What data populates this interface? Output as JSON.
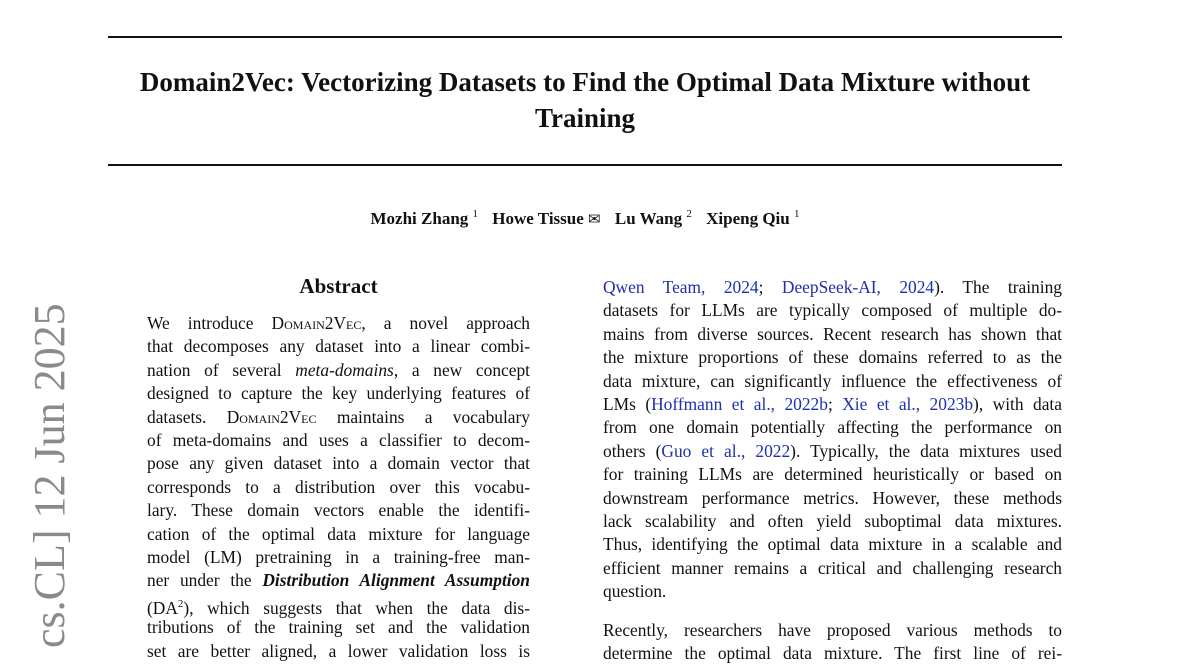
{
  "title": "Domain2Vec: Vectorizing Datasets to Find the Optimal Data Mixture without Training",
  "title_lines": [
    "Domain2Vec: Vectorizing Datasets to Find the Optimal Data Mixture without",
    "Training"
  ],
  "authors": [
    {
      "name": "Mozhi Zhang",
      "mark": "1"
    },
    {
      "name": "Howe Tissue",
      "mark": "✉"
    },
    {
      "name": "Lu Wang",
      "mark": "2"
    },
    {
      "name": "Xipeng Qiu",
      "mark": "1"
    }
  ],
  "abstract_heading": "Abstract",
  "sidebar_stamp": "cs.CL]  12 Jun 2025",
  "link_color": "#1f2fb0",
  "left_column": [
    [
      {
        "t": "We introduce "
      },
      {
        "t": "Domain2Vec",
        "s": "sc"
      },
      {
        "t": ", a novel approach"
      }
    ],
    [
      {
        "t": "that decomposes any dataset into a linear combi-"
      }
    ],
    [
      {
        "t": "nation of several "
      },
      {
        "t": "meta-domains",
        "s": "it"
      },
      {
        "t": ", a new concept"
      }
    ],
    [
      {
        "t": "designed to capture the key underlying features of"
      }
    ],
    [
      {
        "t": "datasets. "
      },
      {
        "t": "Domain2Vec",
        "s": "sc"
      },
      {
        "t": " maintains a vocabulary"
      }
    ],
    [
      {
        "t": "of meta-domains and uses a classifier to decom-"
      }
    ],
    [
      {
        "t": "pose any given dataset into a domain vector that"
      }
    ],
    [
      {
        "t": "corresponds to a distribution over this vocabu-"
      }
    ],
    [
      {
        "t": "lary.  These domain vectors enable the identifi-"
      }
    ],
    [
      {
        "t": "cation of the optimal data mixture for language"
      }
    ],
    [
      {
        "t": "model (LM) pretraining in a training-free man-"
      }
    ],
    [
      {
        "t": "ner under the "
      },
      {
        "t": "Distribution Alignment Assumption",
        "s": "bi"
      }
    ],
    [
      {
        "t": "(DA"
      },
      {
        "t": "2",
        "s": "sup"
      },
      {
        "t": "), which suggests that when the data dis-"
      }
    ],
    [
      {
        "t": "tributions of the training set and the validation"
      }
    ],
    [
      {
        "t": "set are better aligned, a lower validation loss is"
      }
    ]
  ],
  "right_column": [
    [
      {
        "t": "Qwen Team, 2024",
        "s": "lk"
      },
      {
        "t": "; "
      },
      {
        "t": "DeepSeek-AI, 2024",
        "s": "lk"
      },
      {
        "t": ").  The training"
      }
    ],
    [
      {
        "t": "datasets for LLMs are typically composed of multiple do-"
      }
    ],
    [
      {
        "t": "mains from diverse sources. Recent research has shown that"
      }
    ],
    [
      {
        "t": "the mixture proportions of these domains referred to as the"
      }
    ],
    [
      {
        "t": "data mixture, can significantly influence the effectiveness of"
      }
    ],
    [
      {
        "t": "LMs ("
      },
      {
        "t": "Hoffmann et al., 2022b",
        "s": "lk"
      },
      {
        "t": "; "
      },
      {
        "t": "Xie et al., 2023b",
        "s": "lk"
      },
      {
        "t": "), with data"
      }
    ],
    [
      {
        "t": "from one domain potentially affecting the performance on"
      }
    ],
    [
      {
        "t": "others ("
      },
      {
        "t": "Guo et al., 2022",
        "s": "lk"
      },
      {
        "t": "). Typically, the data mixtures used"
      }
    ],
    [
      {
        "t": "for training LLMs are determined heuristically or based on"
      }
    ],
    [
      {
        "t": "downstream performance metrics. However, these methods"
      }
    ],
    [
      {
        "t": "lack scalability and often yield suboptimal data mixtures."
      }
    ],
    [
      {
        "t": "Thus, identifying the optimal data mixture in a scalable and"
      }
    ],
    [
      {
        "t": "efficient manner remains a critical and challenging research"
      }
    ],
    [
      {
        "t": "question."
      }
    ],
    [
      {
        "t": "Recently, researchers have proposed various methods to"
      }
    ],
    [
      {
        "t": "determine the optimal data mixture. The first line of rei-"
      }
    ]
  ]
}
